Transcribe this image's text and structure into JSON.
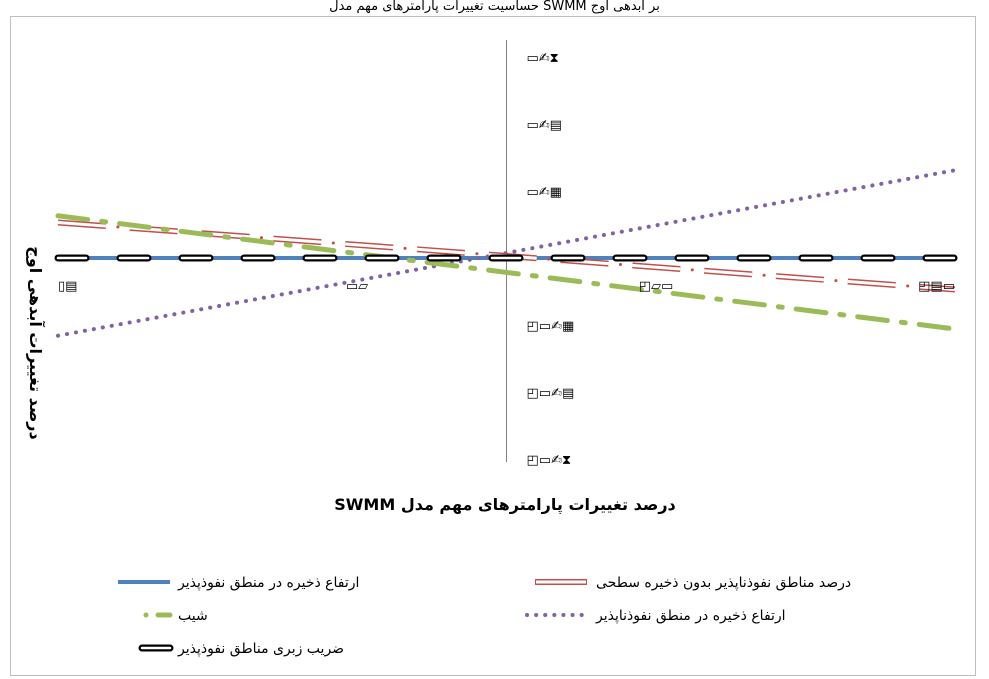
{
  "chart_data": {
    "type": "line",
    "title": "",
    "top_caption": "حساسیت تغییرات پارامترهای مهم مدل SWMM بر آبدهی اوج",
    "xlabel": "درصد تغییرات پارامترهای مهم مدل SWMM",
    "ylabel": "درصد تغییرات آبدهی اوج",
    "xlim": [
      -75,
      75
    ],
    "ylim": [
      -3.2,
      3.2
    ],
    "x_tick_labels": [
      {
        "value": -75,
        "label": "▯▤"
      },
      {
        "value": -25,
        "label": "▭▱"
      },
      {
        "value": 0,
        "label": ""
      },
      {
        "value": 25,
        "label": "◰▱▭"
      },
      {
        "value": 75,
        "label": "◰▤▭"
      }
    ],
    "y_tick_labels": [
      {
        "value": 3,
        "label": "▭✍⧗"
      },
      {
        "value": 2,
        "label": "▭✍▤"
      },
      {
        "value": 1,
        "label": "▭✍▦"
      },
      {
        "value": -1,
        "label": "◰▭✍▦"
      },
      {
        "value": -2,
        "label": "◰▭✍▤"
      },
      {
        "value": -3,
        "label": "◰▭✍⧗"
      }
    ],
    "grid": false,
    "legend_position": "bottom",
    "series": [
      {
        "name": "ارتفاع ذخیره در منطق نفوذپذیر",
        "style": "solid",
        "color": "#4f81bd",
        "x": [
          -75,
          75
        ],
        "y": [
          0,
          0
        ]
      },
      {
        "name": "درصد مناطق نفوذناپذیر بدون ذخیره سطحی",
        "style": "double",
        "color": "#c0504d",
        "x": [
          -75,
          75
        ],
        "y": [
          0.53,
          -0.47
        ]
      },
      {
        "name": "شیب",
        "style": "dash-dot",
        "color": "#9bbb59",
        "x": [
          -75,
          75
        ],
        "y": [
          0.63,
          -1.06
        ]
      },
      {
        "name": "ارتفاع ذخیره در منطق نفوذناپذیر",
        "style": "dotted",
        "color": "#8064a2",
        "x": [
          -75,
          75
        ],
        "y": [
          -1.16,
          1.31
        ]
      },
      {
        "name": "ضریب زبری مناطق نفوذپذیر",
        "style": "outline-dash",
        "color": "#000000",
        "x": [
          -75,
          75
        ],
        "y": [
          0,
          0
        ]
      }
    ]
  }
}
